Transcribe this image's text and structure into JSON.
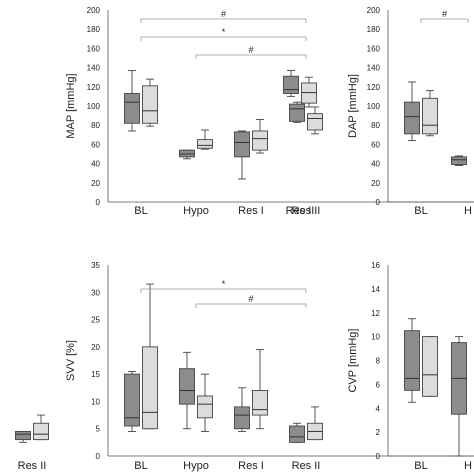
{
  "colors": {
    "dark_box": "#8c8c8c",
    "light_box": "#dcdcdc",
    "edge": "#444444",
    "bracket": "#999999"
  },
  "chart_data": [
    {
      "type": "boxplot",
      "panel": "top-left",
      "ylabel": "",
      "yticks": [],
      "ylim": [
        0,
        200
      ],
      "categories": [
        "",
        "Res II"
      ],
      "series": [
        {
          "values": [
            null,
            {
              "min": 110,
              "q1": 113,
              "median": 117,
              "q3": 131,
              "max": 137
            }
          ]
        },
        {
          "values": [
            null,
            {
              "min": 99,
              "q1": 103,
              "median": 114,
              "q3": 124,
              "max": 130
            }
          ]
        }
      ],
      "brackets": []
    },
    {
      "type": "boxplot",
      "panel": "top-middle",
      "ylabel": "MAP [mmHg]",
      "yticks": [
        "0",
        "20",
        "40",
        "60",
        "80",
        "100",
        "120",
        "140",
        "160",
        "180",
        "200"
      ],
      "ylim": [
        0,
        200
      ],
      "categories": [
        "BL",
        "Hypo",
        "Res I",
        "Res II"
      ],
      "series": [
        {
          "values": [
            {
              "min": 74,
              "q1": 82,
              "median": 104,
              "q3": 113,
              "max": 137
            },
            {
              "min": 45,
              "q1": 47,
              "median": 50,
              "q3": 54,
              "max": 54
            },
            {
              "min": 24,
              "q1": 47,
              "median": 62,
              "q3": 73,
              "max": 74
            },
            {
              "min": 83,
              "q1": 84,
              "median": 97,
              "q3": 102,
              "max": 104
            }
          ]
        },
        {
          "values": [
            {
              "min": 79,
              "q1": 82,
              "median": 95,
              "q3": 121,
              "max": 128
            },
            {
              "min": 55,
              "q1": 56,
              "median": 59,
              "q3": 65,
              "max": 75
            },
            {
              "min": 51,
              "q1": 54,
              "median": 66,
              "q3": 74,
              "max": 86
            },
            {
              "min": 71,
              "q1": 75,
              "median": 87,
              "q3": 92,
              "max": 99
            }
          ]
        }
      ],
      "brackets": [
        {
          "from": 0,
          "to": 3,
          "label": "#"
        },
        {
          "from": 0,
          "to": 3,
          "label": "*"
        },
        {
          "from": 1,
          "to": 3,
          "label": "#"
        }
      ]
    },
    {
      "type": "boxplot",
      "panel": "top-right",
      "ylabel": "DAP [mmHg]",
      "yticks": [
        "0",
        "20",
        "40",
        "60",
        "80",
        "100",
        "120",
        "140",
        "160",
        "180",
        "200"
      ],
      "ylim": [
        0,
        200
      ],
      "categories": [
        "BL",
        "H"
      ],
      "series": [
        {
          "values": [
            {
              "min": 64,
              "q1": 71,
              "median": 89,
              "q3": 104,
              "max": 125
            },
            {
              "min": 38,
              "q1": 39,
              "median": 44,
              "q3": 47,
              "max": 48
            }
          ]
        },
        {
          "values": [
            {
              "min": 69,
              "q1": 71,
              "median": 80,
              "q3": 108,
              "max": 116
            },
            null
          ]
        }
      ],
      "brackets": [
        {
          "from": 0,
          "to": 1,
          "label": "#"
        }
      ]
    },
    {
      "type": "boxplot",
      "panel": "bottom-left",
      "ylabel": "",
      "yticks": [],
      "ylim": [
        0,
        35
      ],
      "categories": [
        "",
        "Res II"
      ],
      "series": [
        {
          "values": [
            null,
            {
              "min": 2.5,
              "q1": 3,
              "median": 4,
              "q3": 4.5,
              "max": 4.5
            }
          ]
        },
        {
          "values": [
            null,
            {
              "min": 3,
              "q1": 3,
              "median": 4,
              "q3": 6,
              "max": 7.5
            }
          ]
        }
      ],
      "brackets": []
    },
    {
      "type": "boxplot",
      "panel": "bottom-middle",
      "ylabel": "SVV [%]",
      "yticks": [
        "0",
        "5",
        "10",
        "15",
        "20",
        "25",
        "30",
        "35"
      ],
      "ylim": [
        0,
        35
      ],
      "categories": [
        "BL",
        "Hypo",
        "Res I",
        "Res II"
      ],
      "series": [
        {
          "values": [
            {
              "min": 4.5,
              "q1": 5.5,
              "median": 7,
              "q3": 15,
              "max": 15.5
            },
            {
              "min": 5,
              "q1": 9.5,
              "median": 12,
              "q3": 16,
              "max": 19
            },
            {
              "min": 4.5,
              "q1": 5,
              "median": 7.5,
              "q3": 9,
              "max": 12.5
            },
            {
              "min": 2.5,
              "q1": 2.5,
              "median": 3.5,
              "q3": 5.5,
              "max": 6
            }
          ]
        },
        {
          "values": [
            {
              "min": 5,
              "q1": 5,
              "median": 8,
              "q3": 20,
              "max": 31.5
            },
            {
              "min": 4.5,
              "q1": 7,
              "median": 9.5,
              "q3": 11,
              "max": 15
            },
            {
              "min": 5,
              "q1": 7.5,
              "median": 8.5,
              "q3": 12,
              "max": 19.5
            },
            {
              "min": 3,
              "q1": 3,
              "median": 4.5,
              "q3": 6,
              "max": 9
            }
          ]
        }
      ],
      "brackets": [
        {
          "from": 0,
          "to": 3,
          "label": "*"
        },
        {
          "from": 1,
          "to": 3,
          "label": "#"
        }
      ]
    },
    {
      "type": "boxplot",
      "panel": "bottom-right",
      "ylabel": "CVP [mmHg]",
      "yticks": [
        "0",
        "2",
        "4",
        "6",
        "8",
        "10",
        "12",
        "14",
        "16"
      ],
      "ylim": [
        0,
        16
      ],
      "categories": [
        "BL",
        "H"
      ],
      "series": [
        {
          "values": [
            {
              "min": 4.5,
              "q1": 5.5,
              "median": 6.5,
              "q3": 10.5,
              "max": 11.5
            },
            {
              "min": 0,
              "q1": 3.5,
              "median": 6.5,
              "q3": 9.5,
              "max": 10
            }
          ]
        },
        {
          "values": [
            {
              "min": 5,
              "q1": 5,
              "median": 6.8,
              "q3": 10,
              "max": 10
            },
            null
          ]
        }
      ],
      "brackets": []
    }
  ]
}
